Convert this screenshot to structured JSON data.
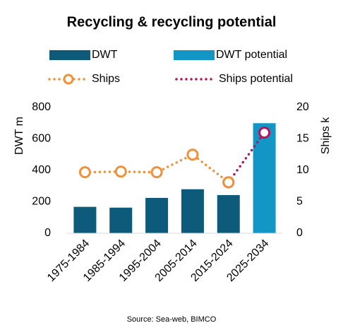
{
  "chart_data": {
    "type": "bar-line",
    "title": "Recycling & recycling potential",
    "categories": [
      "1975-1984",
      "1985-1994",
      "1995-2004",
      "2005-2014",
      "2015-2024",
      "2025-2034"
    ],
    "series": [
      {
        "name": "DWT",
        "type": "bar",
        "color": "#0d5a7b",
        "values": [
          168,
          163,
          225,
          280,
          243,
          null
        ]
      },
      {
        "name": "DWT potential",
        "type": "bar",
        "color": "#1196c6",
        "values": [
          null,
          null,
          null,
          null,
          null,
          700
        ]
      },
      {
        "name": "Ships",
        "type": "line",
        "axis": "y2",
        "color": "#f0913a",
        "values": [
          9.7,
          9.8,
          9.7,
          12.5,
          8.1,
          null
        ]
      },
      {
        "name": "Ships potential",
        "type": "line",
        "axis": "y2",
        "color": "#b5135c",
        "values": [
          null,
          null,
          null,
          null,
          8.1,
          16.0
        ]
      }
    ],
    "ylabel": "DWT m",
    "y2label": "Ships k",
    "ylim": [
      0,
      800
    ],
    "yticks": [
      0,
      200,
      400,
      600,
      800
    ],
    "y2lim": [
      0,
      20
    ],
    "y2ticks": [
      0,
      5,
      10,
      15,
      20
    ],
    "source": "Source: Sea-web, BIMCO"
  }
}
